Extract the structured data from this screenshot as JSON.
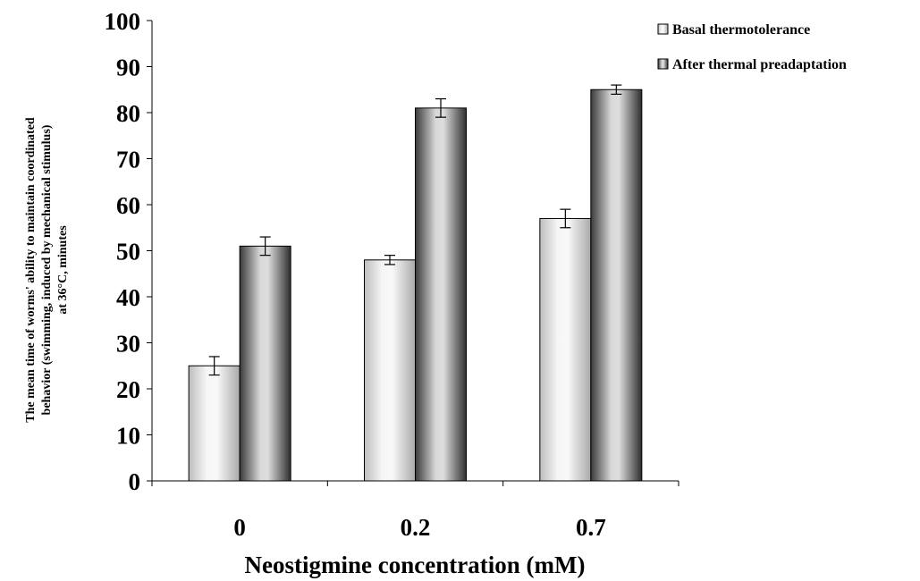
{
  "chart_data": {
    "type": "bar",
    "categories": [
      "0",
      "0.2",
      "0.7"
    ],
    "series": [
      {
        "name": "Basal thermotolerance",
        "values": [
          25,
          48,
          57
        ],
        "errors": [
          2,
          1,
          2
        ]
      },
      {
        "name": "After thermal preadaptation",
        "values": [
          51,
          81,
          85
        ],
        "errors": [
          2,
          2,
          1
        ]
      }
    ],
    "xlabel": "Neostigmine concentration (mM)",
    "ylabel_lines": [
      "The mean time of worms' ability to maintain coordinated",
      "behavior (swimming, induced by mechanical stimulus)",
      "at 36°C, minutes"
    ],
    "ylim": [
      0,
      100
    ],
    "yticks": [
      "0",
      "10",
      "20",
      "30",
      "40",
      "50",
      "60",
      "70",
      "80",
      "90",
      "100"
    ],
    "grid": false,
    "legend_position": "top-right"
  }
}
